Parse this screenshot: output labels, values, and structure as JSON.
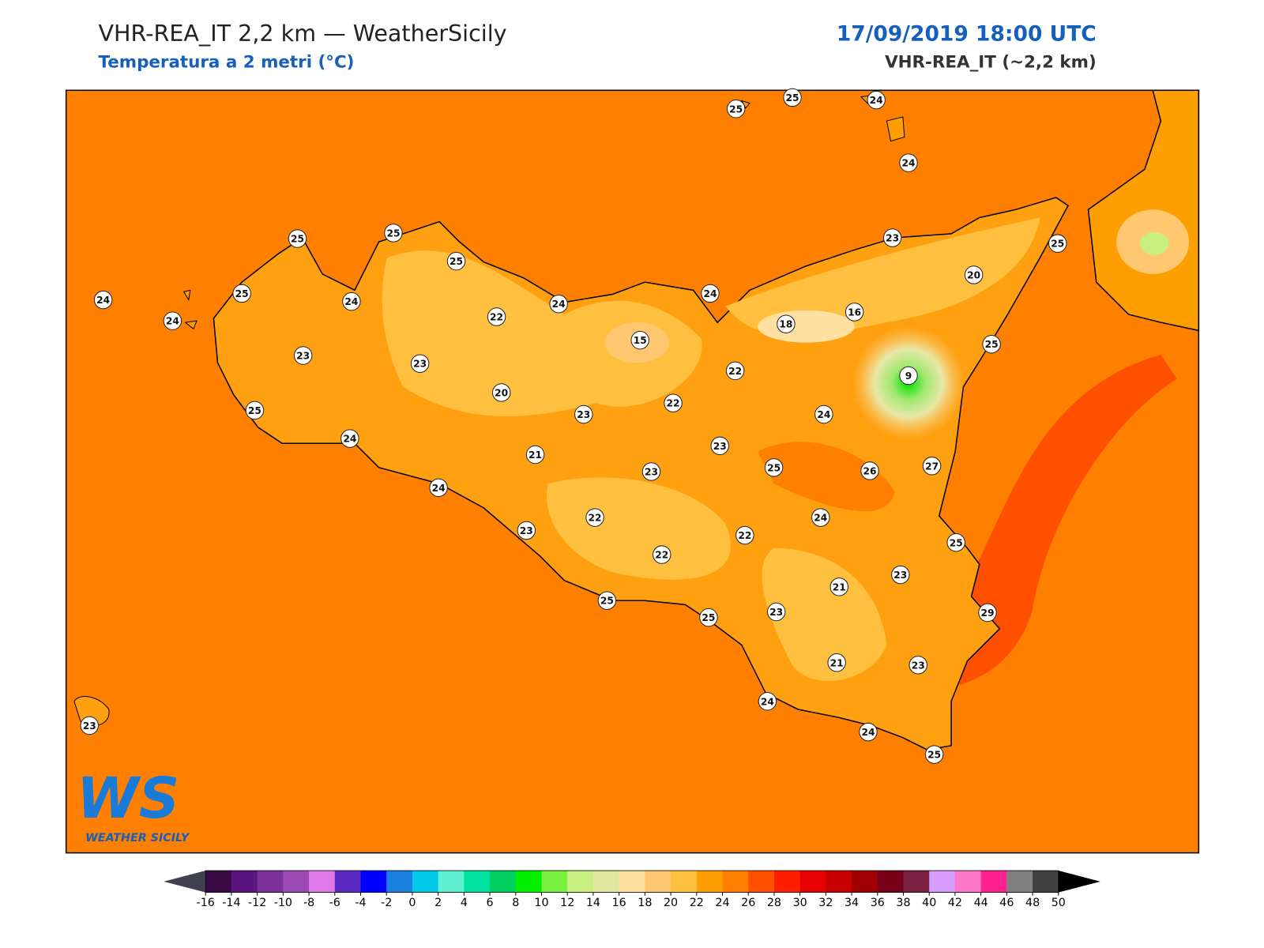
{
  "header": {
    "title": "VHR-REA_IT 2,2 km — WeatherSicily",
    "subtitle": "Temperatura a 2 metri (°C)",
    "datetime": "17/09/2019 18:00 UTC",
    "model": "VHR-REA_IT (~2,2 km)"
  },
  "stations": [
    25,
    25,
    24,
    24,
    25,
    25,
    25,
    24,
    25,
    24,
    24,
    22,
    24,
    24,
    23,
    25,
    20,
    18,
    16,
    15,
    23,
    23,
    22,
    25,
    9,
    20,
    22,
    23,
    25,
    24,
    24,
    23,
    21,
    23,
    25,
    26,
    27,
    24,
    24,
    22,
    23,
    22,
    25,
    22,
    23,
    21,
    25,
    25,
    23,
    29,
    21,
    23,
    24,
    23,
    24,
    25
  ],
  "colorbar": {
    "ticks": [
      -16,
      -14,
      -12,
      -10,
      -8,
      -6,
      -4,
      -2,
      0,
      2,
      4,
      6,
      8,
      10,
      12,
      14,
      16,
      18,
      20,
      22,
      24,
      26,
      28,
      30,
      32,
      34,
      36,
      38,
      40,
      42,
      44,
      46,
      48,
      50
    ],
    "colors": [
      "#3b0a45",
      "#5b1580",
      "#7b3199",
      "#9b4bb3",
      "#e07ae8",
      "#5b2bc4",
      "#0000ff",
      "#1a80e0",
      "#00c8e8",
      "#5ef0d0",
      "#00e0a0",
      "#00d060",
      "#00f000",
      "#7af040",
      "#c8f080",
      "#e0e8a0",
      "#ffe0a0",
      "#ffc870",
      "#ffc040",
      "#ff9e00",
      "#ff8000",
      "#ff5000",
      "#ff1e00",
      "#e60000",
      "#c80000",
      "#a00000",
      "#780018",
      "#7a2040",
      "#d89cff",
      "#ff78c8",
      "#ff2090",
      "#808080",
      "#404040"
    ],
    "under_color": "#404050",
    "over_color": "#000000"
  },
  "logo": {
    "initials": "WS",
    "text": "WEATHER SICILY"
  }
}
